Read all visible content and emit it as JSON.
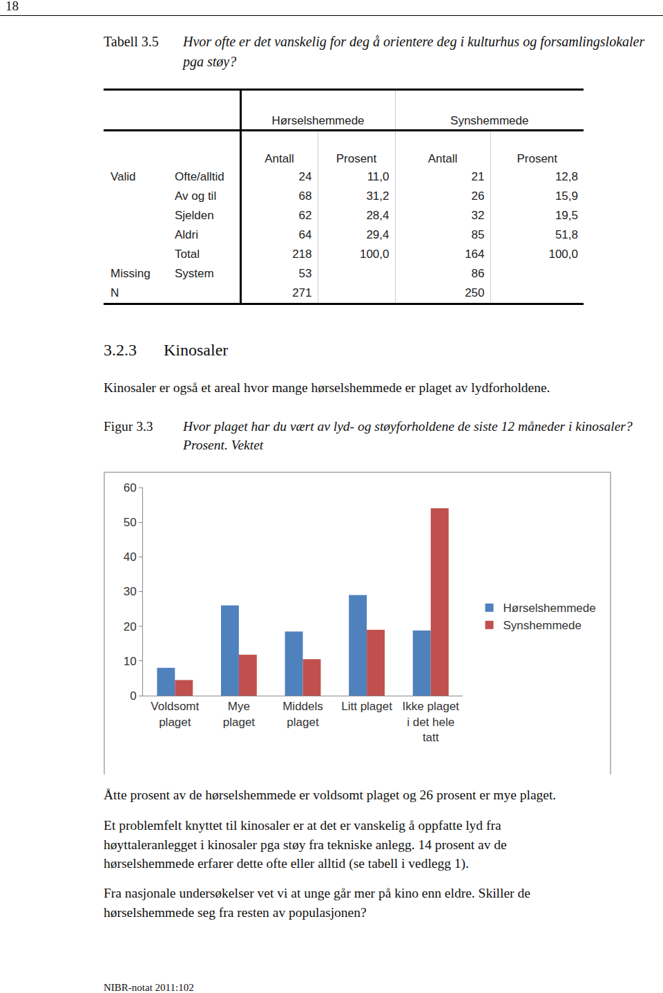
{
  "page_number": "18",
  "table_caption": {
    "label": "Tabell 3.5",
    "title": [
      "Hvor ofte er det vanskelig for deg å orientere deg i kulturhus og forsamlingslokaler",
      "pga støy?"
    ]
  },
  "table": {
    "groups": [
      "Hørselshemmede",
      "Synshemmede"
    ],
    "columns": [
      "Antall",
      "Prosent",
      "Antall",
      "Prosent"
    ],
    "rows": [
      [
        "Valid",
        "Ofte/alltid",
        "24",
        "11,0",
        "21",
        "12,8"
      ],
      [
        null,
        "Av og til",
        "68",
        "31,2",
        "26",
        "15,9"
      ],
      [
        null,
        "Sjelden",
        "62",
        "28,4",
        "32",
        "19,5"
      ],
      [
        null,
        "Aldri",
        "64",
        "29,4",
        "85",
        "51,8"
      ],
      [
        null,
        "Total",
        "218",
        "100,0",
        "164",
        "100,0"
      ],
      [
        "Missing",
        "System",
        "53",
        null,
        "86",
        null
      ],
      [
        "N",
        null,
        "271",
        null,
        "250",
        null
      ]
    ]
  },
  "section": {
    "number": "3.2.3",
    "title": "Kinosaler"
  },
  "intro": [
    "Kinosaler er også et areal hvor mange hørselshemmede er plaget av lydforholdene."
  ],
  "figure_caption": {
    "label": "Figur 3.3",
    "title": [
      "Hvor plaget har du vært av lyd- og støyforholdene de siste 12 måneder i kinosaler?",
      "Prosent. Vektet"
    ]
  },
  "chart_data": {
    "type": "bar",
    "categories": [
      "Voldsomt\nplaget",
      "Mye\nplaget",
      "Middels\nplaget",
      "Litt plaget",
      "Ikke plaget\ni det hele\ntatt"
    ],
    "series": [
      {
        "name": "Hørselshemmede",
        "color": "#4f81bd",
        "values": [
          8,
          26,
          18.5,
          29,
          18.8
        ]
      },
      {
        "name": "Synshemmede",
        "color": "#c0504d",
        "values": [
          4.5,
          11.8,
          10.5,
          19,
          54
        ]
      }
    ],
    "ylim": [
      0,
      60
    ],
    "yticks": [
      0,
      10,
      20,
      30,
      40,
      50,
      60
    ],
    "grid": false,
    "legend": "right"
  },
  "paragraphs": [
    [
      "Åtte prosent av de hørselshemmede er voldsomt plaget og 26 prosent er mye plaget."
    ],
    [
      "Et problemfelt knyttet til kinosaler er at det er vanskelig å oppfatte lyd fra",
      "høyttaleranlegget i kinosaler pga støy fra tekniske anlegg. 14 prosent av de",
      "hørselshemmede erfarer dette ofte eller alltid (se tabell i vedlegg 1)."
    ],
    [
      "Fra nasjonale undersøkelser vet vi at unge går mer på kino enn eldre. Skiller de",
      "hørselshemmede seg fra resten av populasjonen?"
    ]
  ],
  "footer": "NIBR-notat 2011:102"
}
